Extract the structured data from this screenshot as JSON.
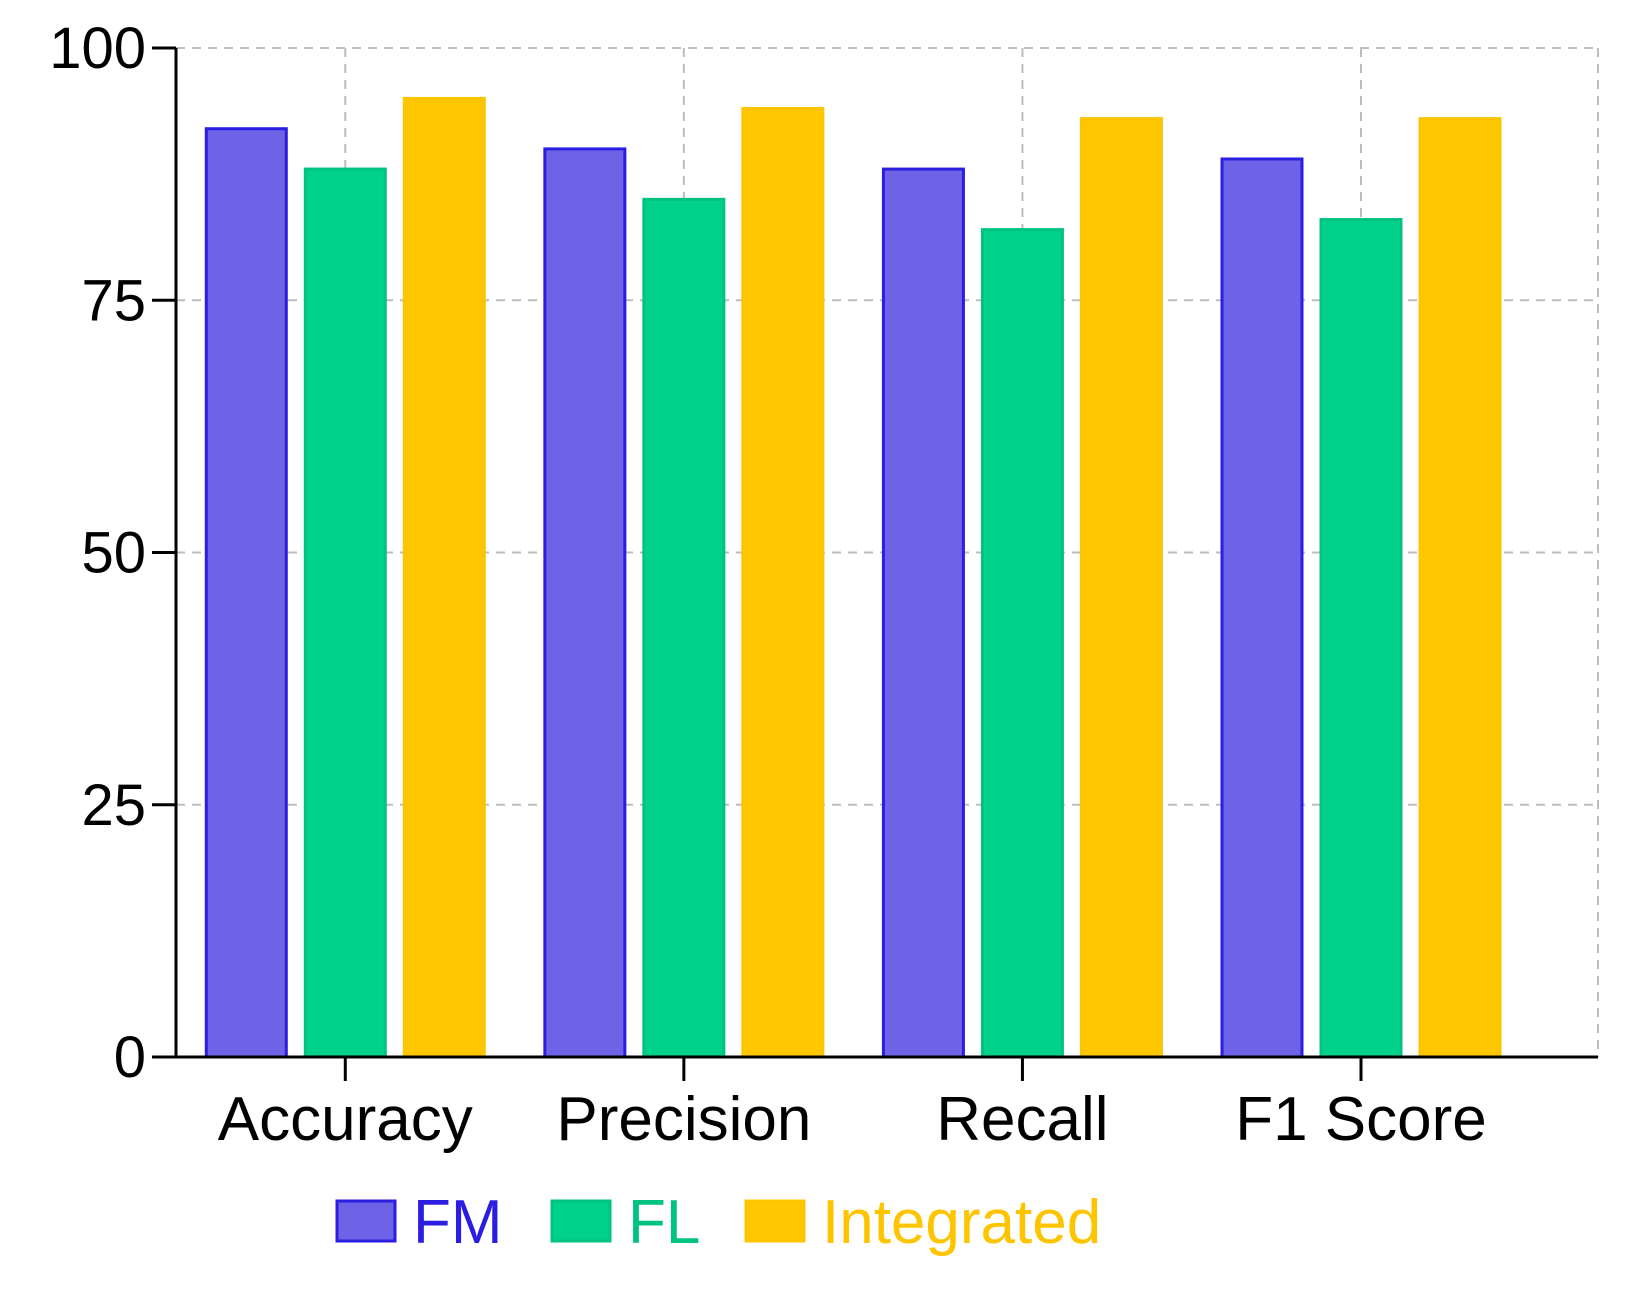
{
  "chart_data": {
    "type": "bar",
    "title": "",
    "xlabel": "",
    "ylabel": "",
    "ylim": [
      0,
      100
    ],
    "yticks": [
      "0",
      "25",
      "50",
      "75",
      "100"
    ],
    "grid": true,
    "legend_position": "bottom",
    "categories": [
      "Accuracy",
      "Precision",
      "Recall",
      "F1 Score"
    ],
    "series": [
      {
        "name": "FM",
        "color": "#6e62e6",
        "edge": "#2b1ee0",
        "text_color": "#2b1ee0",
        "values": [
          92,
          90,
          88,
          89
        ]
      },
      {
        "name": "FL",
        "color": "#00d18b",
        "edge": "#00c37f",
        "text_color": "#00c37f",
        "values": [
          88,
          85,
          82,
          83
        ]
      },
      {
        "name": "Integrated",
        "color": "#ffc700",
        "edge": "#ffc400",
        "text_color": "#ffc400",
        "values": [
          95,
          94,
          93,
          93
        ]
      }
    ]
  }
}
